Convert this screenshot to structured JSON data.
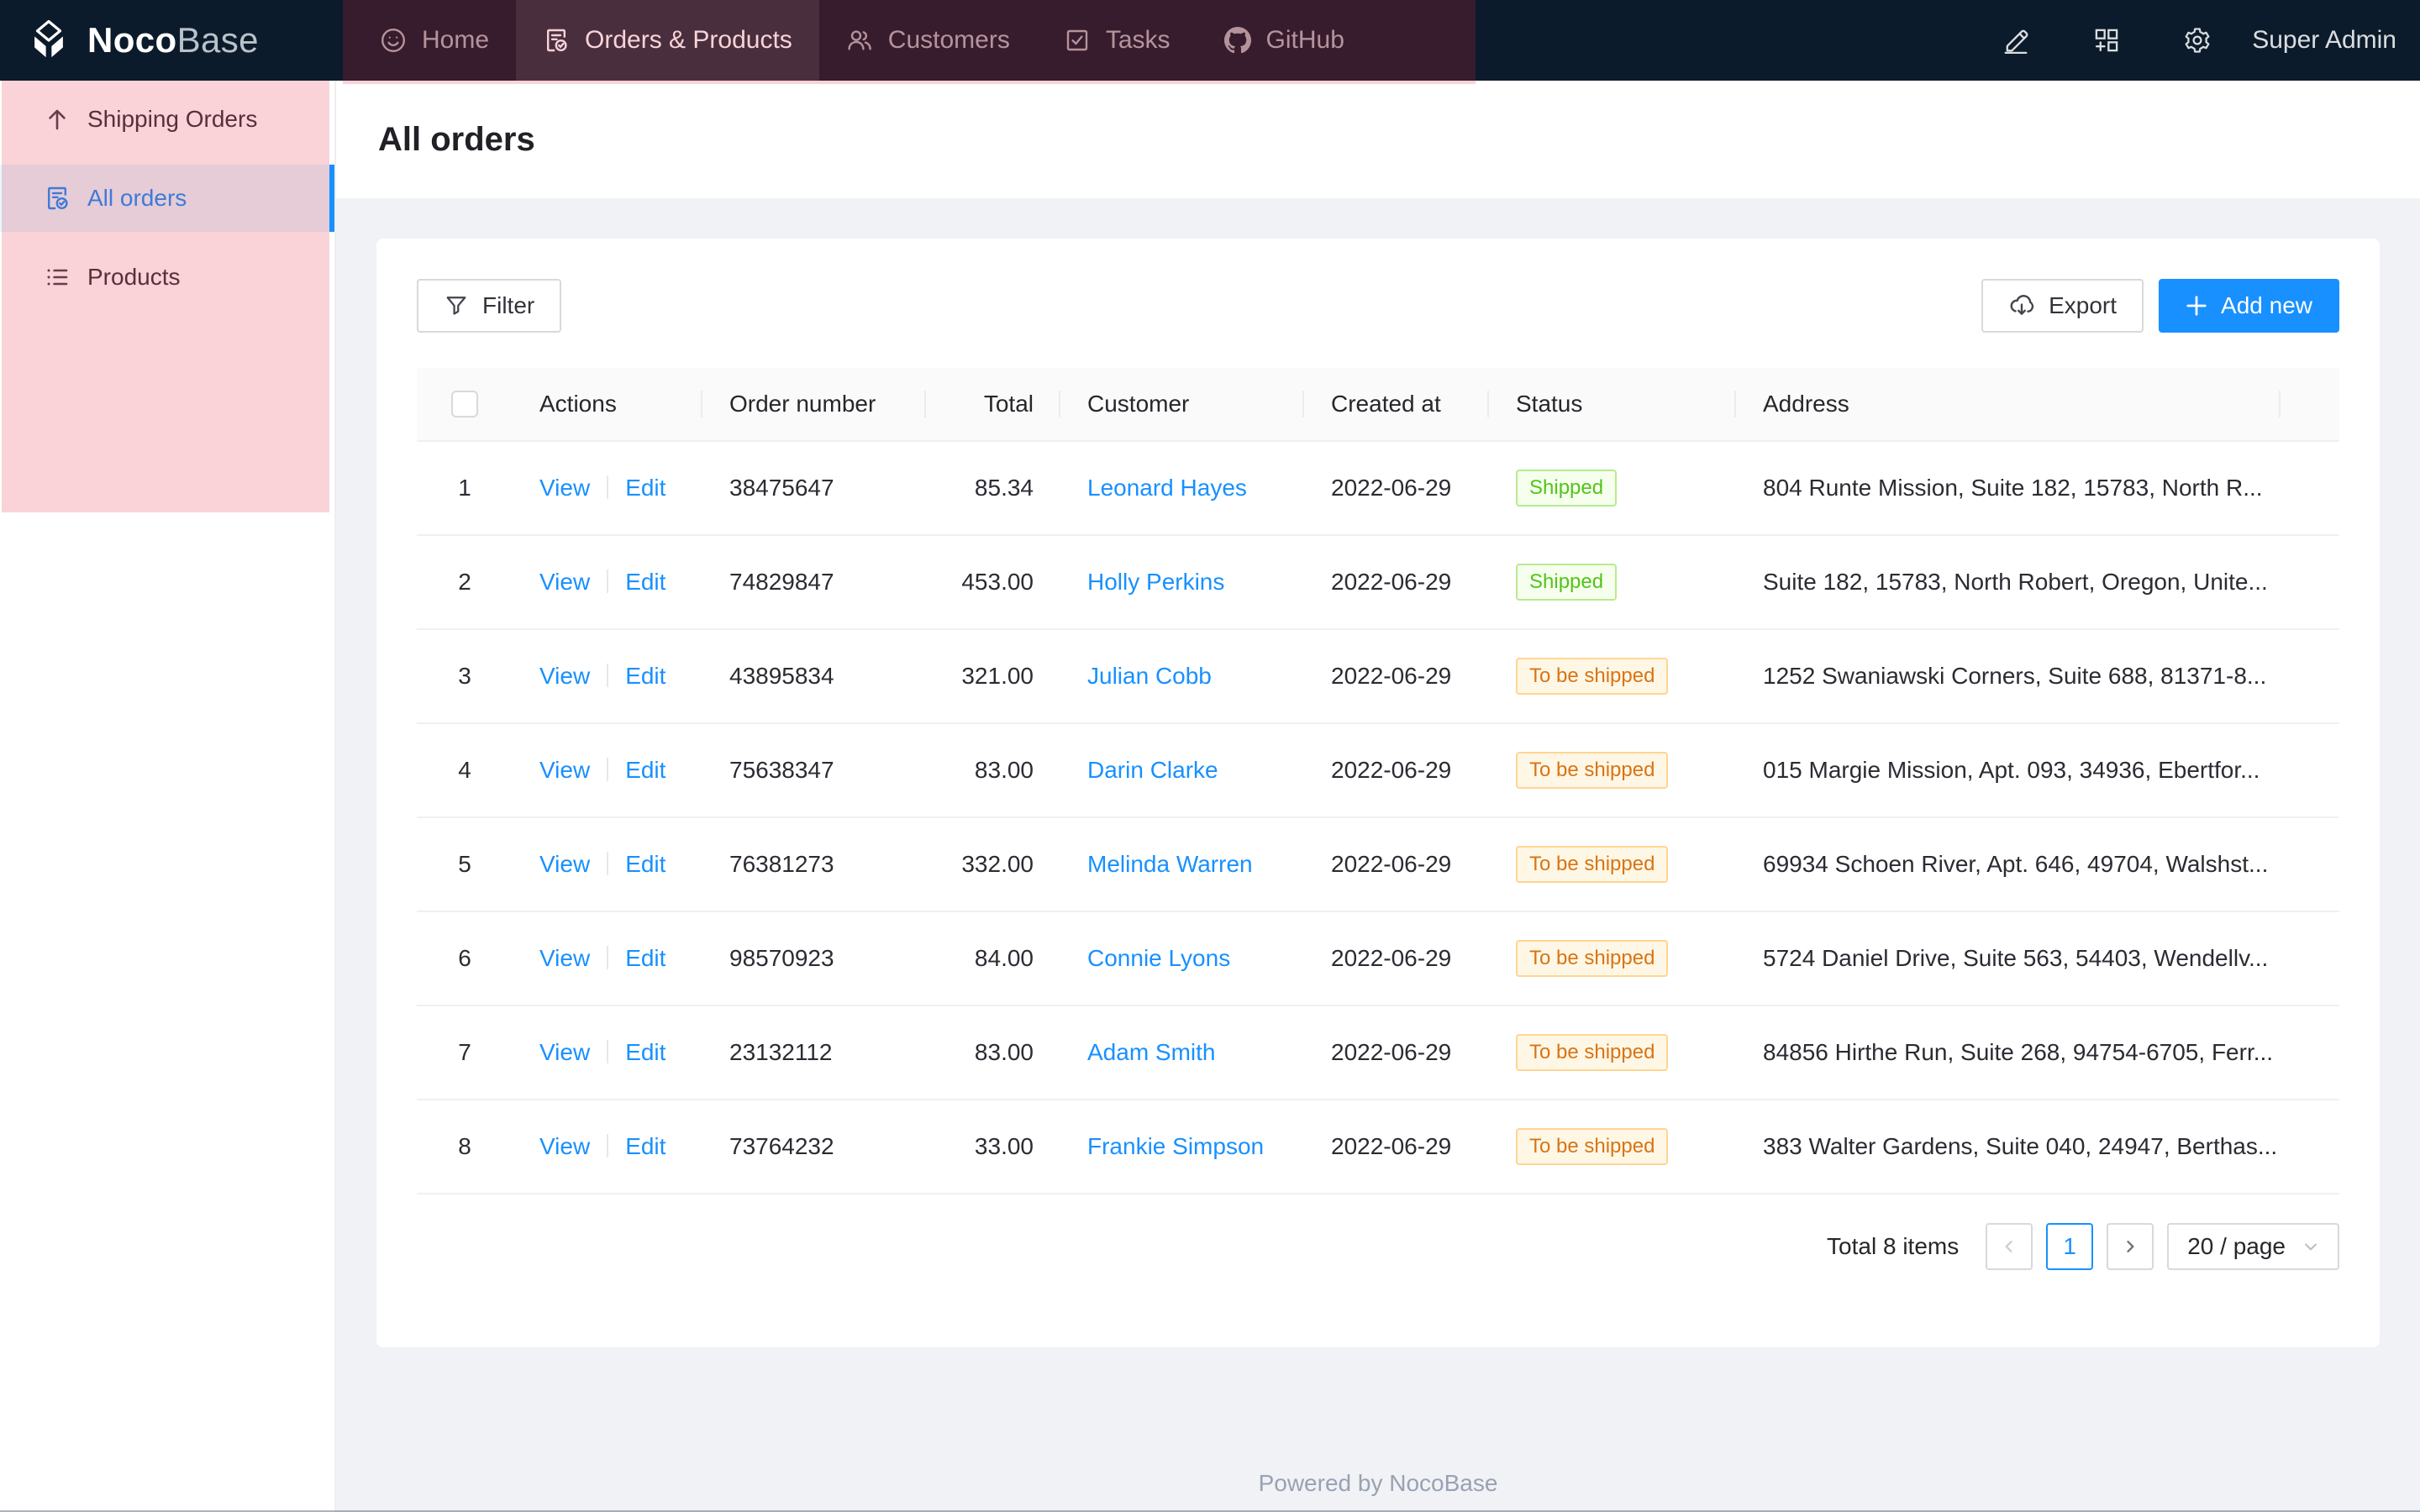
{
  "topbar": {
    "logo": {
      "brand_bold": "Noco",
      "brand_light": "Base"
    },
    "nav": [
      {
        "label": "Home",
        "icon": "smile-icon",
        "selected": false
      },
      {
        "label": "Orders & Products",
        "icon": "file-done-icon",
        "selected": true
      },
      {
        "label": "Customers",
        "icon": "usergroup-icon",
        "selected": false
      },
      {
        "label": "Tasks",
        "icon": "check-square-icon",
        "selected": false
      },
      {
        "label": "GitHub",
        "icon": "github-icon",
        "selected": false
      }
    ],
    "right": {
      "user": "Super Admin"
    }
  },
  "sidebar": {
    "items": [
      {
        "label": "Shipping Orders",
        "icon": "arrow-up-icon",
        "selected": false
      },
      {
        "label": "All orders",
        "icon": "file-done-icon",
        "selected": true
      },
      {
        "label": "Products",
        "icon": "list-icon",
        "selected": false
      }
    ]
  },
  "page": {
    "title": "All orders"
  },
  "toolbar": {
    "filter_label": "Filter",
    "export_label": "Export",
    "add_new_label": "Add new"
  },
  "table": {
    "columns": [
      "",
      "Actions",
      "Order number",
      "Total",
      "Customer",
      "Created at",
      "Status",
      "Address"
    ],
    "actions": {
      "view": "View",
      "edit": "Edit"
    },
    "rows": [
      {
        "index": 1,
        "order_number": "38475647",
        "total": "85.34",
        "customer": "Leonard Hayes",
        "created_at": "2022-06-29",
        "status": "Shipped",
        "status_color": "green",
        "address": "804 Runte Mission, Suite 182, 15783, North R..."
      },
      {
        "index": 2,
        "order_number": "74829847",
        "total": "453.00",
        "customer": "Holly Perkins",
        "created_at": "2022-06-29",
        "status": "Shipped",
        "status_color": "green",
        "address": "Suite 182, 15783, North Robert, Oregon, Unite..."
      },
      {
        "index": 3,
        "order_number": "43895834",
        "total": "321.00",
        "customer": "Julian Cobb",
        "created_at": "2022-06-29",
        "status": "To be shipped",
        "status_color": "orange",
        "address": "1252 Swaniawski Corners, Suite 688, 81371-8..."
      },
      {
        "index": 4,
        "order_number": "75638347",
        "total": "83.00",
        "customer": "Darin Clarke",
        "created_at": "2022-06-29",
        "status": "To be shipped",
        "status_color": "orange",
        "address": "015 Margie Mission, Apt. 093, 34936, Ebertfor..."
      },
      {
        "index": 5,
        "order_number": "76381273",
        "total": "332.00",
        "customer": "Melinda Warren",
        "created_at": "2022-06-29",
        "status": "To be shipped",
        "status_color": "orange",
        "address": "69934 Schoen River, Apt. 646, 49704, Walshst..."
      },
      {
        "index": 6,
        "order_number": "98570923",
        "total": "84.00",
        "customer": "Connie Lyons",
        "created_at": "2022-06-29",
        "status": "To be shipped",
        "status_color": "orange",
        "address": "5724 Daniel Drive, Suite 563, 54403, Wendellv..."
      },
      {
        "index": 7,
        "order_number": "23132112",
        "total": "83.00",
        "customer": "Adam Smith",
        "created_at": "2022-06-29",
        "status": "To be shipped",
        "status_color": "orange",
        "address": "84856 Hirthe Run, Suite 268, 94754-6705, Ferr..."
      },
      {
        "index": 8,
        "order_number": "73764232",
        "total": "33.00",
        "customer": "Frankie Simpson",
        "created_at": "2022-06-29",
        "status": "To be shipped",
        "status_color": "orange",
        "address": "383 Walter Gardens, Suite 040, 24947, Berthas..."
      }
    ]
  },
  "pagination": {
    "total_text": "Total 8 items",
    "page": "1",
    "page_size": "20 / page"
  },
  "footer": {
    "text": "Powered by NocoBase"
  },
  "colors": {
    "topbar_bg": "#0c1b2b",
    "accent_blue": "#1890ff",
    "page_bg": "#f0f2f5",
    "annotation_overlay": "rgba(224,36,56,0.2)",
    "status_shipped_green": "#52c41a",
    "status_to_ship_orange": "#d87413",
    "sidebar_selected_bg": "#e6f7ff"
  }
}
